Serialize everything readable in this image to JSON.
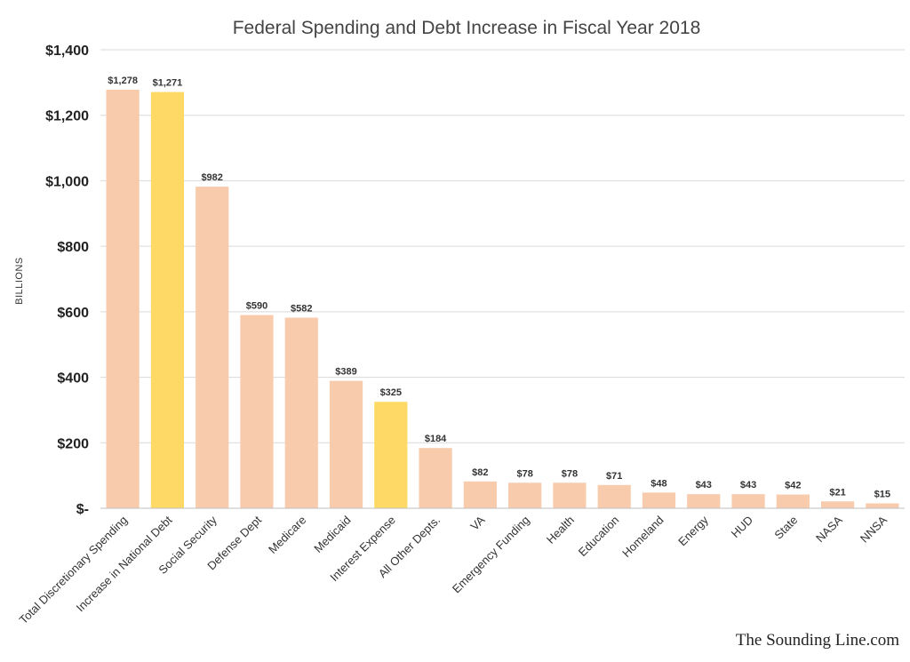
{
  "chart_data": {
    "type": "bar",
    "title": "Federal Spending and Debt Increase in Fiscal Year 2018",
    "ylabel": "BILLIONS",
    "xlabel": "",
    "ylim": [
      0,
      1400
    ],
    "yticks": [
      0,
      200,
      400,
      600,
      800,
      1000,
      1200,
      1400
    ],
    "ytick_labels": [
      "$-",
      "$200",
      "$400",
      "$600",
      "$800",
      "$1,000",
      "$1,200",
      "$1,400"
    ],
    "grid": true,
    "categories": [
      "Total Discretionary Spending",
      "Increase in National Debt",
      "Social Security",
      "Defense Dept",
      "Medicare",
      "Medicaid",
      "Interest Expense",
      "All Other Depts.",
      "VA",
      "Emergency Funding",
      "Health",
      "Education",
      "Homeland",
      "Energy",
      "HUD",
      "State",
      "NASA",
      "NNSA"
    ],
    "values": [
      1278,
      1271,
      982,
      590,
      582,
      389,
      325,
      184,
      82,
      78,
      78,
      71,
      48,
      43,
      43,
      42,
      21,
      15
    ],
    "data_labels": [
      "$1,278",
      "$1,271",
      "$982",
      "$590",
      "$582",
      "$389",
      "$325",
      "$184",
      "$82",
      "$78",
      "$78",
      "$71",
      "$48",
      "$43",
      "$43",
      "$42",
      "$21",
      "$15"
    ],
    "highlighted": [
      "Increase in National Debt",
      "Interest Expense"
    ],
    "colors": {
      "default_bar": "#f8cbad",
      "highlight_bar": "#ffd966",
      "gridline": "#d9d9d9"
    }
  },
  "credit": "The Sounding Line.com"
}
